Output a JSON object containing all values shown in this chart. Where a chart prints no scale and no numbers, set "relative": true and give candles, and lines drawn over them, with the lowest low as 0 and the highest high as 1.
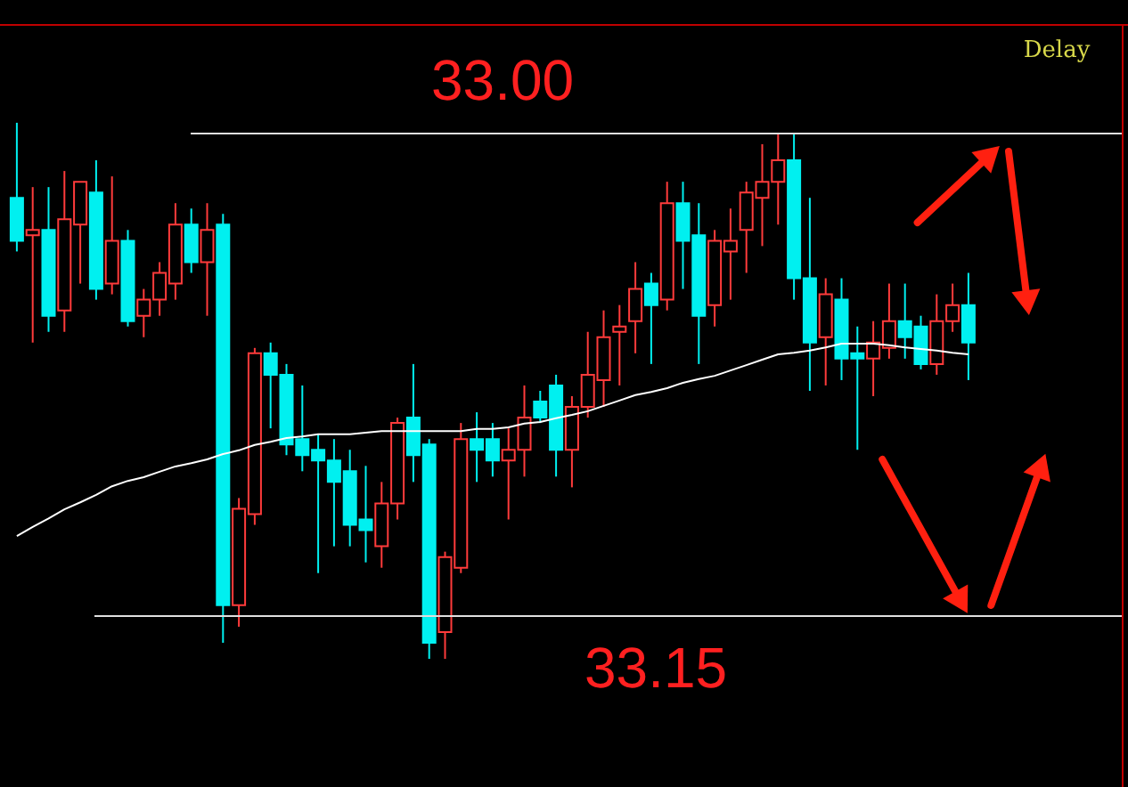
{
  "chart_data": {
    "type": "candlestick",
    "relative": true,
    "categories": [
      null,
      null,
      null,
      null,
      null,
      null,
      null,
      null,
      null,
      null,
      null,
      null,
      null,
      null,
      null,
      null,
      null,
      null,
      null,
      null,
      null,
      null,
      null,
      null,
      null,
      null,
      null,
      null,
      null,
      null,
      null,
      null,
      null,
      null,
      null,
      null,
      null,
      null,
      null,
      null,
      null,
      null,
      null,
      null,
      null,
      null,
      null,
      null,
      null,
      null,
      null,
      null,
      null,
      null,
      null,
      null,
      null,
      null,
      null,
      null,
      null,
      null,
      null,
      null,
      null,
      null,
      null,
      null,
      null,
      null
    ],
    "ohlc": [
      [
        0.86,
        1.0,
        0.76,
        0.78
      ],
      [
        0.79,
        0.88,
        0.59,
        0.8
      ],
      [
        0.8,
        0.88,
        0.61,
        0.64
      ],
      [
        0.65,
        0.91,
        0.61,
        0.82
      ],
      [
        0.81,
        0.89,
        0.7,
        0.89
      ],
      [
        0.87,
        0.93,
        0.67,
        0.69
      ],
      [
        0.7,
        0.9,
        0.68,
        0.78
      ],
      [
        0.78,
        0.8,
        0.62,
        0.63
      ],
      [
        0.64,
        0.69,
        0.6,
        0.67
      ],
      [
        0.67,
        0.74,
        0.64,
        0.72
      ],
      [
        0.7,
        0.85,
        0.67,
        0.81
      ],
      [
        0.81,
        0.84,
        0.72,
        0.74
      ],
      [
        0.74,
        0.85,
        0.64,
        0.8
      ],
      [
        0.81,
        0.83,
        0.03,
        0.1
      ],
      [
        0.1,
        0.3,
        0.06,
        0.28
      ],
      [
        0.27,
        0.58,
        0.25,
        0.57
      ],
      [
        0.57,
        0.59,
        0.43,
        0.53
      ],
      [
        0.53,
        0.55,
        0.38,
        0.4
      ],
      [
        0.41,
        0.51,
        0.35,
        0.38
      ],
      [
        0.39,
        0.42,
        0.16,
        0.37
      ],
      [
        0.37,
        0.41,
        0.21,
        0.33
      ],
      [
        0.35,
        0.39,
        0.21,
        0.25
      ],
      [
        0.26,
        0.36,
        0.18,
        0.24
      ],
      [
        0.21,
        0.33,
        0.17,
        0.29
      ],
      [
        0.29,
        0.45,
        0.26,
        0.44
      ],
      [
        0.45,
        0.55,
        0.33,
        0.38
      ],
      [
        0.4,
        0.41,
        0.0,
        0.03
      ],
      [
        0.05,
        0.2,
        0.0,
        0.19
      ],
      [
        0.17,
        0.44,
        0.16,
        0.41
      ],
      [
        0.41,
        0.46,
        0.33,
        0.39
      ],
      [
        0.41,
        0.44,
        0.34,
        0.37
      ],
      [
        0.37,
        0.43,
        0.26,
        0.39
      ],
      [
        0.39,
        0.51,
        0.34,
        0.45
      ],
      [
        0.48,
        0.5,
        0.44,
        0.45
      ],
      [
        0.51,
        0.53,
        0.34,
        0.39
      ],
      [
        0.39,
        0.49,
        0.32,
        0.47
      ],
      [
        0.47,
        0.61,
        0.45,
        0.53
      ],
      [
        0.52,
        0.65,
        0.47,
        0.6
      ],
      [
        0.61,
        0.66,
        0.51,
        0.62
      ],
      [
        0.63,
        0.74,
        0.57,
        0.69
      ],
      [
        0.7,
        0.72,
        0.55,
        0.66
      ],
      [
        0.67,
        0.89,
        0.65,
        0.85
      ],
      [
        0.85,
        0.89,
        0.69,
        0.78
      ],
      [
        0.79,
        0.85,
        0.55,
        0.64
      ],
      [
        0.66,
        0.8,
        0.62,
        0.78
      ],
      [
        0.76,
        0.84,
        0.67,
        0.78
      ],
      [
        0.8,
        0.89,
        0.72,
        0.87
      ],
      [
        0.86,
        0.96,
        0.77,
        0.89
      ],
      [
        0.89,
        0.98,
        0.81,
        0.93
      ],
      [
        0.93,
        0.98,
        0.67,
        0.71
      ],
      [
        0.71,
        0.86,
        0.5,
        0.59
      ],
      [
        0.6,
        0.71,
        0.51,
        0.68
      ],
      [
        0.67,
        0.71,
        0.52,
        0.56
      ],
      [
        0.57,
        0.62,
        0.39,
        0.56
      ],
      [
        0.56,
        0.63,
        0.49,
        0.59
      ],
      [
        0.58,
        0.7,
        0.56,
        0.63
      ],
      [
        0.63,
        0.7,
        0.56,
        0.6
      ],
      [
        0.62,
        0.64,
        0.54,
        0.55
      ],
      [
        0.55,
        0.68,
        0.53,
        0.63
      ],
      [
        0.63,
        0.7,
        0.61,
        0.66
      ],
      [
        0.66,
        0.72,
        0.52,
        0.59
      ],
      null,
      null,
      null,
      null,
      null,
      null,
      null,
      null,
      null
    ],
    "series": [
      {
        "type": "line",
        "color": "#ffffff",
        "values": [
          0.229,
          0.246,
          0.262,
          0.279,
          0.292,
          0.306,
          0.322,
          0.332,
          0.339,
          0.349,
          0.359,
          0.365,
          0.372,
          0.382,
          0.389,
          0.399,
          0.405,
          0.412,
          0.415,
          0.419,
          0.419,
          0.419,
          0.422,
          0.425,
          0.425,
          0.425,
          0.425,
          0.425,
          0.425,
          0.429,
          0.429,
          0.432,
          0.439,
          0.442,
          0.449,
          0.455,
          0.462,
          0.472,
          0.482,
          0.492,
          0.498,
          0.505,
          0.515,
          0.522,
          0.528,
          0.538,
          0.548,
          0.558,
          0.568,
          0.571,
          0.575,
          0.581,
          0.588,
          0.588,
          0.588,
          0.585,
          0.581,
          0.578,
          0.575,
          0.571,
          0.568,
          null,
          null,
          null,
          null,
          null,
          null,
          null,
          null,
          null
        ]
      }
    ],
    "ref_lines": [
      {
        "axis": "y",
        "value": 0.98,
        "color": "#e0e0e0"
      },
      {
        "axis": "y",
        "value": 0.08,
        "color": "#e0e0e0"
      }
    ],
    "annotations": [
      "33.00",
      "33.15",
      "Delay"
    ]
  }
}
